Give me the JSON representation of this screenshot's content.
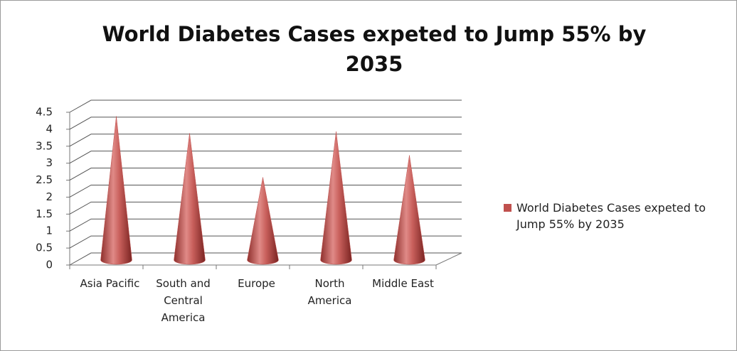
{
  "chart_data": {
    "type": "bar",
    "title": "World Diabetes Cases expeted to Jump 55% by 2035",
    "categories": [
      "Asia Pacific",
      "South and Central America",
      "Europe",
      "North America",
      "Middle East"
    ],
    "series": [
      {
        "name": "World Diabetes Cases expeted to Jump 55% by 2035",
        "color": "#c0504d",
        "values": [
          4.3,
          3.8,
          2.5,
          3.85,
          3.15
        ]
      }
    ],
    "ylim": [
      0,
      4.5
    ],
    "yticks": [
      0,
      0.5,
      1,
      1.5,
      2,
      2.5,
      3,
      3.5,
      4,
      4.5
    ],
    "grid": true,
    "legend": "right"
  }
}
